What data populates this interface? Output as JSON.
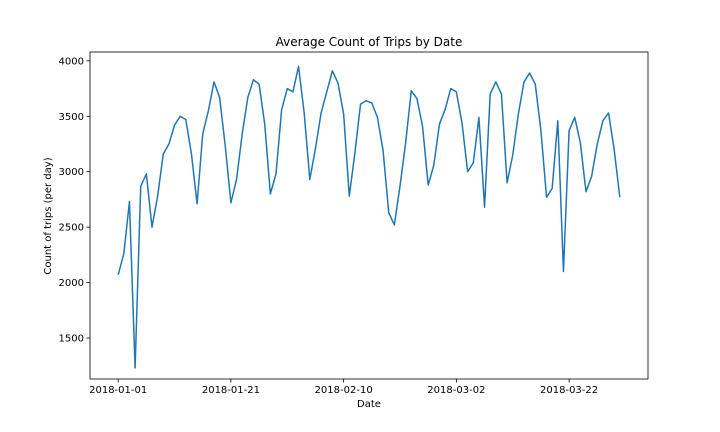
{
  "chart_data": {
    "type": "line",
    "title": "Average Count of Trips by Date",
    "xlabel": "Date",
    "ylabel": "Count of trips (per day)",
    "x_ticks": [
      "2018-01-01",
      "2018-01-21",
      "2018-02-10",
      "2018-03-02",
      "2018-03-22"
    ],
    "y_ticks": [
      1500,
      2000,
      2500,
      3000,
      3500,
      4000
    ],
    "xlim": [
      "2017-12-27",
      "2018-04-05"
    ],
    "ylim": [
      1130,
      4080
    ],
    "grid": false,
    "legend": "none",
    "colors": {
      "line": "#1f77b4"
    },
    "series": [
      {
        "x_start": "2018-01-01",
        "x_step_days": 1,
        "values": [
          2070,
          2260,
          2730,
          1230,
          2870,
          2980,
          2500,
          2780,
          3160,
          3250,
          3420,
          3500,
          3470,
          3160,
          2710,
          3340,
          3550,
          3810,
          3670,
          3230,
          2720,
          2930,
          3340,
          3670,
          3830,
          3790,
          3430,
          2800,
          2980,
          3560,
          3750,
          3720,
          3950,
          3530,
          2930,
          3210,
          3530,
          3720,
          3910,
          3800,
          3520,
          2780,
          3170,
          3610,
          3640,
          3620,
          3490,
          3190,
          2630,
          2520,
          2870,
          3260,
          3730,
          3660,
          3410,
          2880,
          3060,
          3430,
          3560,
          3750,
          3720,
          3440,
          3000,
          3080,
          3490,
          2680,
          3700,
          3810,
          3700,
          2900,
          3150,
          3520,
          3810,
          3890,
          3790,
          3370,
          2770,
          2850,
          3460,
          2100,
          3370,
          3490,
          3260,
          2820,
          2960,
          3250,
          3460,
          3530,
          3200,
          2770
        ]
      }
    ]
  }
}
